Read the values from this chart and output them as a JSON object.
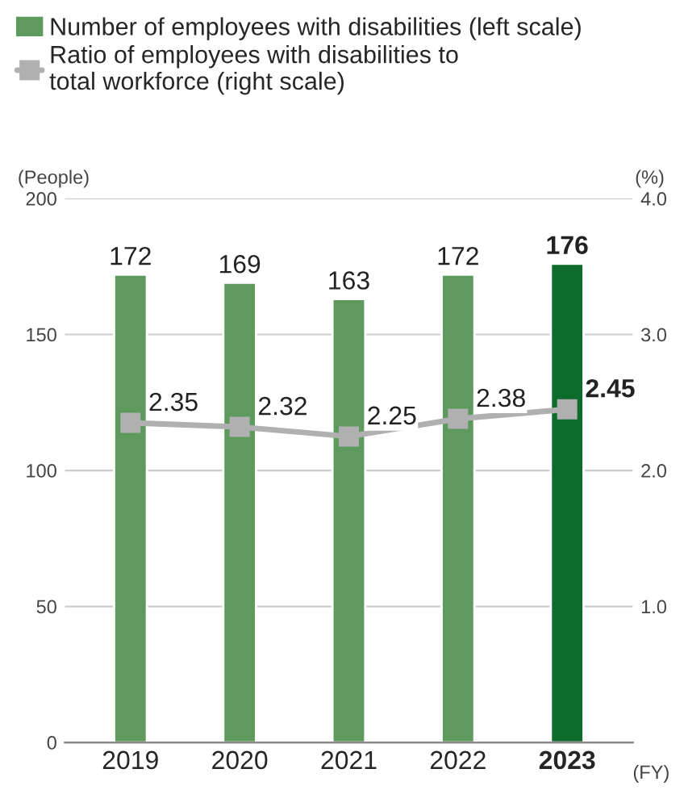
{
  "chart_data": {
    "type": "bar",
    "categories": [
      "2019",
      "2020",
      "2021",
      "2022",
      "2023"
    ],
    "xlabel": "(FY)",
    "ylabel": "(People)",
    "y2label": "(%)",
    "series": [
      {
        "name": "Number of employees with disabilities (left scale)",
        "color": "#5e9a5e",
        "colors": [
          "#5e9a5e",
          "#5e9a5e",
          "#5e9a5e",
          "#5e9a5e",
          "#0d6b2c"
        ],
        "values": [
          172,
          169,
          163,
          172,
          176
        ]
      },
      {
        "name": "Ratio of employees with disabilities to\ntotal workforce (right scale)",
        "type": "line",
        "axis": "y2",
        "color": "#b0b0b0",
        "marker": "square",
        "values": [
          2.35,
          2.32,
          2.25,
          2.38,
          2.45
        ]
      }
    ],
    "data_labels": true,
    "ylim": [
      0,
      200
    ],
    "yticks": [
      0,
      50,
      100,
      150,
      200
    ],
    "y2lim": [
      0,
      4
    ],
    "y2ticks": [
      {
        "value": 0,
        "label": null
      },
      {
        "value": 1,
        "label": "1.0"
      },
      {
        "value": 2,
        "label": "2.0"
      },
      {
        "value": 3,
        "label": "3.0"
      },
      {
        "value": 4,
        "label": "4.0"
      }
    ],
    "grid": "y",
    "legend": "top left"
  }
}
